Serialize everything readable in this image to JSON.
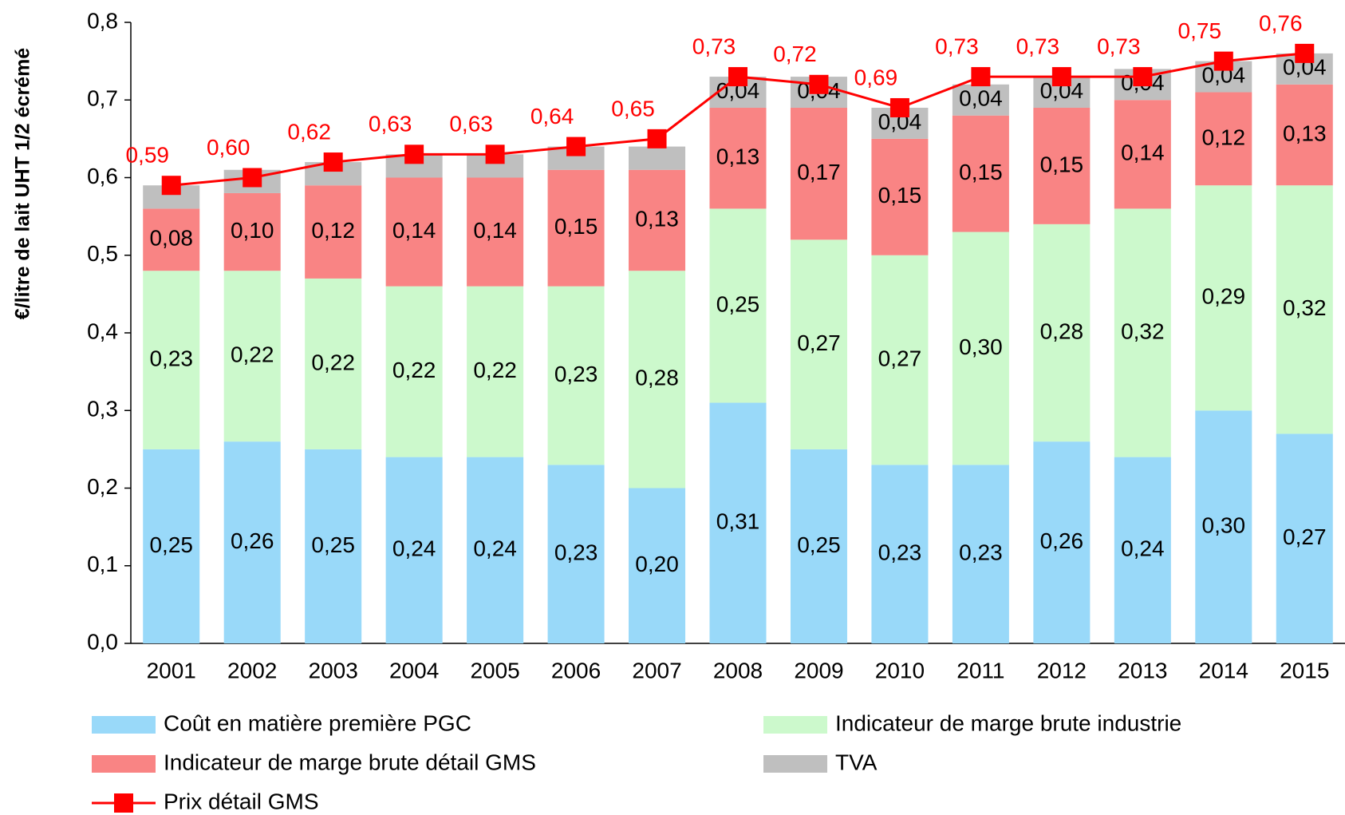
{
  "chart_data": {
    "type": "bar",
    "stacked": true,
    "y_label": "€/litre de lait UHT 1/2 écrémé",
    "categories": [
      "2001",
      "2002",
      "2003",
      "2004",
      "2005",
      "2006",
      "2007",
      "2008",
      "2009",
      "2010",
      "2011",
      "2012",
      "2013",
      "2014",
      "2015"
    ],
    "ylim": [
      0,
      0.8
    ],
    "yticks": [
      {
        "value": 0,
        "label": "0,0"
      },
      {
        "value": 0.1,
        "label": "0,1"
      },
      {
        "value": 0.2,
        "label": "0,2"
      },
      {
        "value": 0.3,
        "label": "0,3"
      },
      {
        "value": 0.4,
        "label": "0,4"
      },
      {
        "value": 0.5,
        "label": "0,5"
      },
      {
        "value": 0.6,
        "label": "0,6"
      },
      {
        "value": 0.7,
        "label": "0,7"
      },
      {
        "value": 0.8,
        "label": "0,8"
      }
    ],
    "series": [
      {
        "name": "Coût en matière première PGC",
        "color": "#99d9f9",
        "type": "bar",
        "values": [
          0.25,
          0.26,
          0.25,
          0.24,
          0.24,
          0.23,
          0.2,
          0.31,
          0.25,
          0.23,
          0.23,
          0.26,
          0.24,
          0.3,
          0.27
        ],
        "value_labels": [
          "0,25",
          "0,26",
          "0,25",
          "0,24",
          "0,24",
          "0,23",
          "0,20",
          "0,31",
          "0,25",
          "0,23",
          "0,23",
          "0,26",
          "0,24",
          "0,30",
          "0,27"
        ]
      },
      {
        "name": "Indicateur de marge brute industrie",
        "color": "#ccf9cc",
        "type": "bar",
        "values": [
          0.23,
          0.22,
          0.22,
          0.22,
          0.22,
          0.23,
          0.28,
          0.25,
          0.27,
          0.27,
          0.3,
          0.28,
          0.32,
          0.29,
          0.32
        ],
        "value_labels": [
          "0,23",
          "0,22",
          "0,22",
          "0,22",
          "0,22",
          "0,23",
          "0,28",
          "0,25",
          "0,27",
          "0,27",
          "0,30",
          "0,28",
          "0,32",
          "0,29",
          "0,32"
        ]
      },
      {
        "name": "Indicateur de marge brute détail GMS",
        "color": "#f98484",
        "type": "bar",
        "values": [
          0.08,
          0.1,
          0.12,
          0.14,
          0.14,
          0.15,
          0.13,
          0.13,
          0.17,
          0.15,
          0.15,
          0.15,
          0.14,
          0.12,
          0.13
        ],
        "value_labels": [
          "0,08",
          "0,10",
          "0,12",
          "0,14",
          "0,14",
          "0,15",
          "0,13",
          "0,13",
          "0,17",
          "0,15",
          "0,15",
          "0,15",
          "0,14",
          "0,12",
          "0,13"
        ]
      },
      {
        "name": "TVA",
        "color": "#bfbfbf",
        "type": "bar",
        "values": [
          0.03,
          0.03,
          0.03,
          0.03,
          0.03,
          0.03,
          0.03,
          0.04,
          0.04,
          0.04,
          0.04,
          0.04,
          0.04,
          0.04,
          0.04
        ],
        "value_labels": [
          null,
          null,
          null,
          null,
          null,
          null,
          null,
          "0,04",
          "0,04",
          "0,04",
          "0,04",
          "0,04",
          "0,04",
          "0,04",
          "0,04"
        ]
      },
      {
        "name": "Prix détail GMS",
        "color": "#ff0000",
        "type": "line",
        "values": [
          0.59,
          0.6,
          0.62,
          0.63,
          0.63,
          0.64,
          0.65,
          0.73,
          0.72,
          0.69,
          0.73,
          0.73,
          0.73,
          0.75,
          0.76
        ],
        "value_labels": [
          "0,59",
          "0,60",
          "0,62",
          "0,63",
          "0,63",
          "0,64",
          "0,65",
          "0,73",
          "0,72",
          "0,69",
          "0,73",
          "0,73",
          "0,73",
          "0,75",
          "0,76"
        ]
      }
    ]
  }
}
